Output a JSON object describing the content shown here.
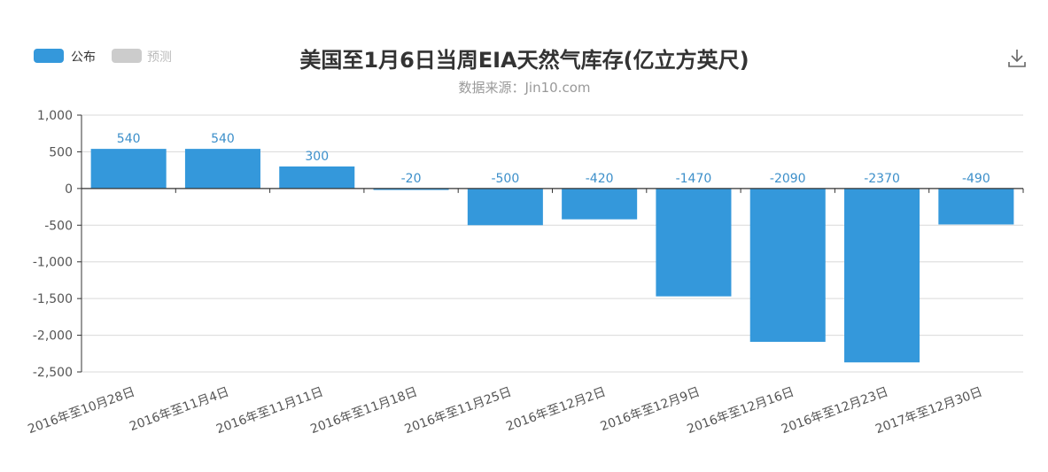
{
  "colors": {
    "bar": "#3498db",
    "legend_published": "#3498db",
    "legend_forecast": "#cccccc",
    "grid": "#d9d9d9",
    "axis": "#333333",
    "label": "#3c8fca"
  },
  "icons": {
    "download": "download-icon"
  },
  "legend": {
    "published": "公布",
    "forecast": "预测"
  },
  "chart_data": {
    "type": "bar",
    "title": "美国至1月6日当周EIA天然气库存(亿立方英尺)",
    "subtitle": "数据来源：Jin10.com",
    "categories": [
      "2016年至10月28日",
      "2016年至11月4日",
      "2016年至11月11日",
      "2016年至11月18日",
      "2016年至11月25日",
      "2016年至12月2日",
      "2016年至12月9日",
      "2016年至12月16日",
      "2016年至12月23日",
      "2017年至12月30日"
    ],
    "series": [
      {
        "name": "公布",
        "values": [
          540,
          540,
          300,
          -20,
          -500,
          -420,
          -1470,
          -2090,
          -2370,
          -490
        ]
      }
    ],
    "yticks": [
      "1,000",
      "500",
      "0",
      "-500",
      "-1,000",
      "-1,500",
      "-2,000",
      "-2,500"
    ],
    "ytick_values": [
      1000,
      500,
      0,
      -500,
      -1000,
      -1500,
      -2000,
      -2500
    ],
    "ylim": [
      -2500,
      1000
    ],
    "grid": true,
    "legend_position": "top-left"
  }
}
